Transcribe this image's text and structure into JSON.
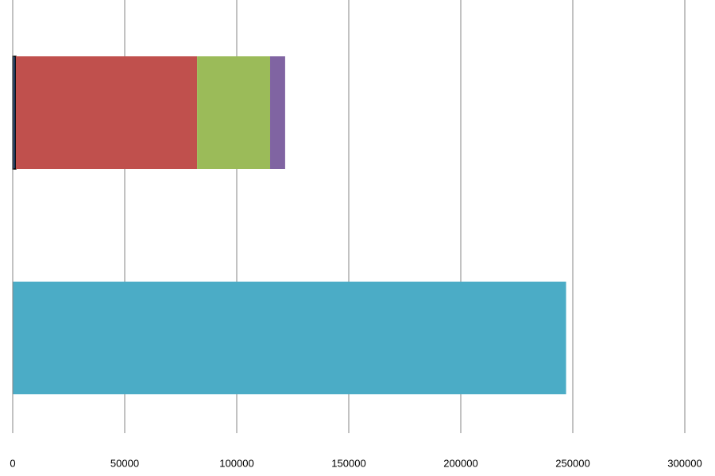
{
  "chart_data": {
    "type": "stacked-bar-horizontal",
    "categories": [
      null,
      null
    ],
    "series": [
      {
        "color": "#1f3a5f",
        "values": [
          1400,
          null
        ]
      },
      {
        "color": "#c0504d",
        "values": [
          80900,
          null
        ]
      },
      {
        "color": "#9bbb59",
        "values": [
          32600,
          null
        ]
      },
      {
        "color": "#8064a2",
        "values": [
          6700,
          null
        ]
      },
      {
        "color": "#4bacc6",
        "values": [
          null,
          247000
        ]
      }
    ],
    "xlim": [
      0,
      300000
    ],
    "xticks": [
      0,
      50000,
      100000,
      150000,
      200000,
      250000,
      300000
    ],
    "grid": true
  }
}
